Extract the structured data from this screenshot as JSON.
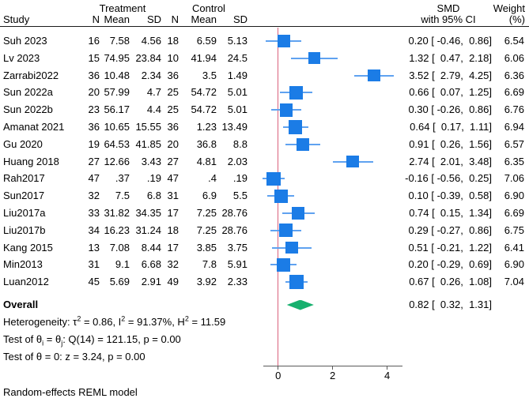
{
  "colors": {
    "marker_blue": "#1b7ce6",
    "ci_blue": "#5fa2f0",
    "null_line_red": "#d9617d",
    "diamond_green": "#17b06e",
    "axis_gray": "#5a5a5a",
    "rule_black": "#1a1a1a"
  },
  "header": {
    "group_treatment": "Treatment",
    "group_control": "Control",
    "col_study": "Study",
    "col_n": "N",
    "col_mean": "Mean",
    "col_sd": "SD",
    "col_smd_line1": "SMD",
    "col_smd_line2": "with 95% CI",
    "col_weight_line1": "Weight",
    "col_weight_line2": "(%)"
  },
  "chart_data": {
    "type": "forest",
    "effect_measure": "SMD",
    "x_axis": {
      "tick_labels": [
        "0",
        "2",
        "4"
      ],
      "tick_values": [
        0,
        2,
        4
      ]
    },
    "null_value": 0,
    "studies": [
      {
        "study": "Suh 2023",
        "t_n": "16",
        "t_mean": "7.58",
        "t_sd": "4.56",
        "c_n": "18",
        "c_mean": "6.59",
        "c_sd": "5.13",
        "smd": 0.2,
        "ci_lo": -0.46,
        "ci_hi": 0.86,
        "smd_text": "0.20 [ -0.46,  0.86]",
        "weight": "6.54"
      },
      {
        "study": "Lv 2023",
        "t_n": "15",
        "t_mean": "74.95",
        "t_sd": "23.84",
        "c_n": "10",
        "c_mean": "41.94",
        "c_sd": "24.5",
        "smd": 1.32,
        "ci_lo": 0.47,
        "ci_hi": 2.18,
        "smd_text": "1.32 [  0.47,  2.18]",
        "weight": "6.06"
      },
      {
        "study": "Zarrabi2022",
        "t_n": "36",
        "t_mean": "10.48",
        "t_sd": "2.34",
        "c_n": "36",
        "c_mean": "3.5",
        "c_sd": "1.49",
        "smd": 3.52,
        "ci_lo": 2.79,
        "ci_hi": 4.25,
        "smd_text": "3.52 [  2.79,  4.25]",
        "weight": "6.36"
      },
      {
        "study": "Sun 2022a",
        "t_n": "20",
        "t_mean": "57.99",
        "t_sd": "4.7",
        "c_n": "25",
        "c_mean": "54.72",
        "c_sd": "5.01",
        "smd": 0.66,
        "ci_lo": 0.07,
        "ci_hi": 1.25,
        "smd_text": "0.66 [  0.07,  1.25]",
        "weight": "6.69"
      },
      {
        "study": "Sun 2022b",
        "t_n": "23",
        "t_mean": "56.17",
        "t_sd": "4.4",
        "c_n": "25",
        "c_mean": "54.72",
        "c_sd": "5.01",
        "smd": 0.3,
        "ci_lo": -0.26,
        "ci_hi": 0.86,
        "smd_text": "0.30 [ -0.26,  0.86]",
        "weight": "6.76"
      },
      {
        "study": "Amanat 2021",
        "t_n": "36",
        "t_mean": "10.65",
        "t_sd": "15.55",
        "c_n": "36",
        "c_mean": "1.23",
        "c_sd": "13.49",
        "smd": 0.64,
        "ci_lo": 0.17,
        "ci_hi": 1.11,
        "smd_text": "0.64 [  0.17,  1.11]",
        "weight": "6.94"
      },
      {
        "study": "Gu 2020",
        "t_n": "19",
        "t_mean": "64.53",
        "t_sd": "41.85",
        "c_n": "20",
        "c_mean": "36.8",
        "c_sd": "8.8",
        "smd": 0.91,
        "ci_lo": 0.26,
        "ci_hi": 1.56,
        "smd_text": "0.91 [  0.26,  1.56]",
        "weight": "6.57"
      },
      {
        "study": "Huang 2018",
        "t_n": "27",
        "t_mean": "12.66",
        "t_sd": "3.43",
        "c_n": "27",
        "c_mean": "4.81",
        "c_sd": "2.03",
        "smd": 2.74,
        "ci_lo": 2.01,
        "ci_hi": 3.48,
        "smd_text": "2.74 [  2.01,  3.48]",
        "weight": "6.35"
      },
      {
        "study": "Rah2017",
        "t_n": "47",
        "t_mean": ".37",
        "t_sd": ".19",
        "c_n": "47",
        "c_mean": ".4",
        "c_sd": ".19",
        "smd": -0.16,
        "ci_lo": -0.56,
        "ci_hi": 0.25,
        "smd_text": "-0.16 [ -0.56,  0.25]",
        "weight": "7.06"
      },
      {
        "study": "Sun2017",
        "t_n": "32",
        "t_mean": "7.5",
        "t_sd": "6.8",
        "c_n": "31",
        "c_mean": "6.9",
        "c_sd": "5.5",
        "smd": 0.1,
        "ci_lo": -0.39,
        "ci_hi": 0.58,
        "smd_text": "0.10 [ -0.39,  0.58]",
        "weight": "6.90"
      },
      {
        "study": "Liu2017a",
        "t_n": "33",
        "t_mean": "31.82",
        "t_sd": "34.35",
        "c_n": "17",
        "c_mean": "7.25",
        "c_sd": "28.76",
        "smd": 0.74,
        "ci_lo": 0.15,
        "ci_hi": 1.34,
        "smd_text": "0.74 [  0.15,  1.34]",
        "weight": "6.69"
      },
      {
        "study": "Liu2017b",
        "t_n": "34",
        "t_mean": "16.23",
        "t_sd": "31.24",
        "c_n": "18",
        "c_mean": "7.25",
        "c_sd": "28.76",
        "smd": 0.29,
        "ci_lo": -0.27,
        "ci_hi": 0.86,
        "smd_text": "0.29 [ -0.27,  0.86]",
        "weight": "6.75"
      },
      {
        "study": "Kang 2015",
        "t_n": "13",
        "t_mean": "7.08",
        "t_sd": "8.44",
        "c_n": "17",
        "c_mean": "3.85",
        "c_sd": "3.75",
        "smd": 0.51,
        "ci_lo": -0.21,
        "ci_hi": 1.22,
        "smd_text": "0.51 [ -0.21,  1.22]",
        "weight": "6.41"
      },
      {
        "study": "Min2013",
        "t_n": "31",
        "t_mean": "9.1",
        "t_sd": "6.68",
        "c_n": "32",
        "c_mean": "7.8",
        "c_sd": "5.91",
        "smd": 0.2,
        "ci_lo": -0.29,
        "ci_hi": 0.69,
        "smd_text": "0.20 [ -0.29,  0.69]",
        "weight": "6.90"
      },
      {
        "study": "Luan2012",
        "t_n": "45",
        "t_mean": "5.69",
        "t_sd": "2.91",
        "c_n": "49",
        "c_mean": "3.92",
        "c_sd": "2.33",
        "smd": 0.67,
        "ci_lo": 0.26,
        "ci_hi": 1.08,
        "smd_text": "0.67 [  0.26,  1.08]",
        "weight": "7.04"
      }
    ],
    "overall": {
      "label": "Overall",
      "smd": 0.82,
      "ci_lo": 0.32,
      "ci_hi": 1.31,
      "smd_text": "0.82 [  0.32,  1.31]"
    }
  },
  "stats": {
    "lines": [
      {
        "name": "heterogeneity-line",
        "segments": [
          {
            "t": "Heterogeneity: τ"
          },
          {
            "t": "2",
            "s": "sup"
          },
          {
            "t": " = 0.86, I"
          },
          {
            "t": "2",
            "s": "sup"
          },
          {
            "t": " = 91.37%, H"
          },
          {
            "t": "2",
            "s": "sup"
          },
          {
            "t": " = 11.59"
          }
        ]
      },
      {
        "name": "q-test-line",
        "segments": [
          {
            "t": "Test of θ"
          },
          {
            "t": "i",
            "s": "sub"
          },
          {
            "t": " = θ"
          },
          {
            "t": "j",
            "s": "sub"
          },
          {
            "t": ": Q(14) = 121.15, p = 0.00"
          }
        ]
      },
      {
        "name": "z-test-line",
        "segments": [
          {
            "t": "Test of θ = 0: z = 3.24, p = 0.00"
          }
        ]
      }
    ]
  },
  "footer": "Random-effects REML model"
}
